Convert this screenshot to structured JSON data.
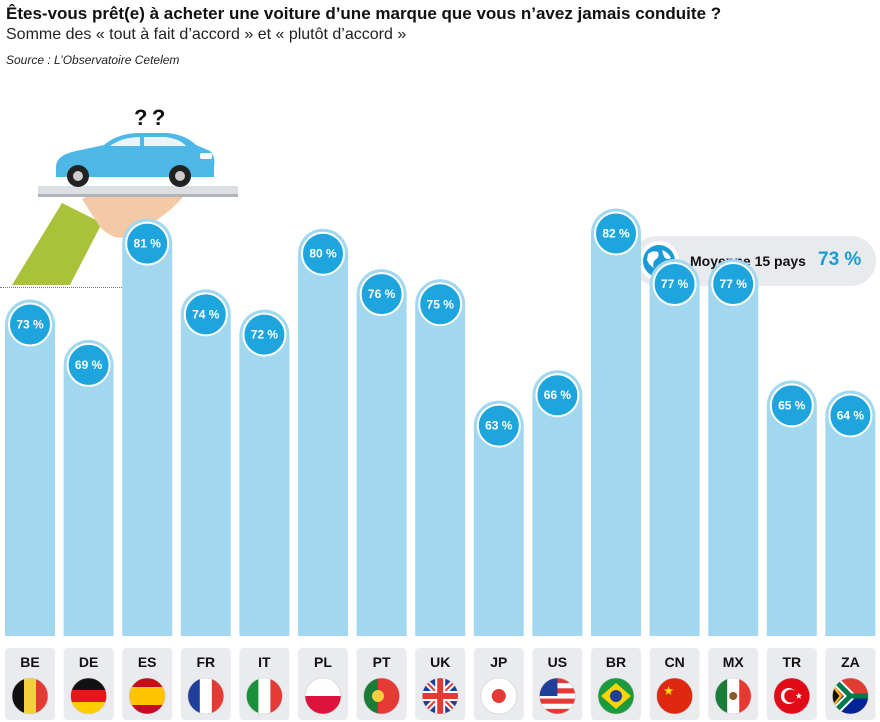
{
  "header": {
    "title": "Êtes-vous prêt(e) à acheter une voiture d’une marque que vous n’avez jamais conduite ?",
    "subtitle": "Somme des « tout à fait d’accord » et « plutôt d’accord »",
    "source": "Source : L’Observatoire Cetelem"
  },
  "illustration": {
    "question_marks": "? ?"
  },
  "average": {
    "label": "Moyenne 15 pays",
    "value": "73 %",
    "icon": "globe-icon"
  },
  "colors": {
    "bar": "#a1d8f0",
    "bubble": "#1ea5de",
    "avg_value": "#1a9bd7",
    "code_box": "#e9ebee"
  },
  "chart_data": {
    "type": "bar",
    "categories": [
      "BE",
      "DE",
      "ES",
      "FR",
      "IT",
      "PL",
      "PT",
      "UK",
      "JP",
      "US",
      "BR",
      "CN",
      "MX",
      "TR",
      "ZA"
    ],
    "values": [
      73,
      69,
      81,
      74,
      72,
      80,
      76,
      75,
      63,
      66,
      82,
      77,
      77,
      65,
      64
    ],
    "value_labels": [
      "73 %",
      "69 %",
      "81 %",
      "74 %",
      "72 %",
      "80 %",
      "76 %",
      "75 %",
      "63 %",
      "66 %",
      "82 %",
      "77 %",
      "77 %",
      "65 %",
      "64 %"
    ],
    "flags": [
      "flag-be",
      "flag-de",
      "flag-es",
      "flag-fr",
      "flag-it",
      "flag-pl",
      "flag-pt",
      "flag-uk",
      "flag-jp",
      "flag-us",
      "flag-br",
      "flag-cn",
      "flag-mx",
      "flag-tr",
      "flag-za"
    ],
    "grid": false,
    "legend": "none"
  }
}
